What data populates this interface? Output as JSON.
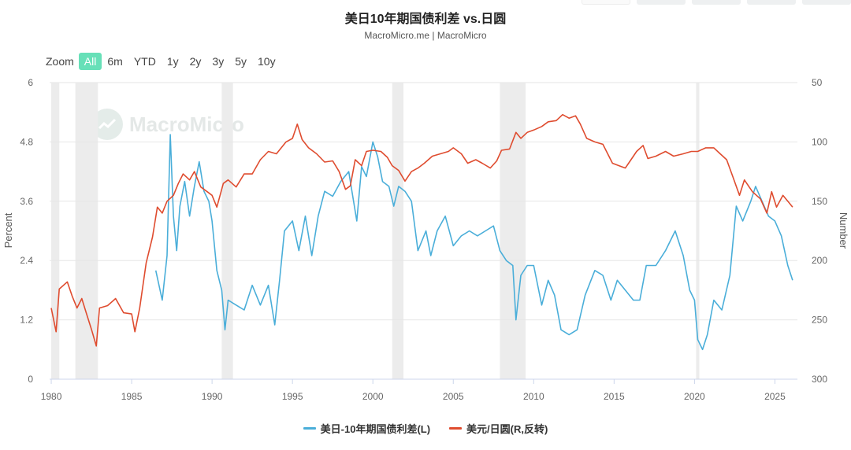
{
  "header": {
    "title": "美日10年期国债利差 vs.日圆",
    "subtitle": "MacroMicro.me | MacroMicro"
  },
  "watermark": {
    "text": "MacroMicro"
  },
  "zoom": {
    "label": "Zoom",
    "buttons": [
      "All",
      "6m",
      "YTD",
      "1y",
      "2y",
      "3y",
      "5y",
      "10y"
    ],
    "active": "All"
  },
  "colors": {
    "spread": "#4aaed9",
    "usdjpy": "#df4c2f",
    "recession": "#ececec",
    "grid": "#e6e6e6",
    "zoom_active": "#67e0b8"
  },
  "chart_data": {
    "type": "line",
    "title": "美日10年期国债利差 vs.日圆",
    "subtitle": "MacroMicro.me | MacroMicro",
    "x_ticks": [
      "1980",
      "1985",
      "1990",
      "1995",
      "2000",
      "2005",
      "2010",
      "2015",
      "2020",
      "2025"
    ],
    "xlim": [
      1979.9,
      2026.4
    ],
    "left_axis": {
      "label": "Percent",
      "ylim": [
        0,
        6
      ],
      "ticks": [
        "0",
        "1.2",
        "2.4",
        "3.6",
        "4.8",
        "6"
      ]
    },
    "right_axis": {
      "label": "Number",
      "ylim": [
        300,
        50
      ],
      "inverted": true,
      "ticks": [
        "300",
        "250",
        "200",
        "150",
        "100",
        "50"
      ]
    },
    "recession_bands": [
      [
        1980.0,
        1980.5
      ],
      [
        1981.5,
        1982.9
      ],
      [
        1990.6,
        1991.3
      ],
      [
        2001.2,
        2001.9
      ],
      [
        2007.9,
        2009.5
      ],
      [
        2020.1,
        2020.3
      ]
    ],
    "series": [
      {
        "name": "美日-10年期国债利差(L)",
        "axis": "left",
        "points": [
          [
            1986.5,
            2.2
          ],
          [
            1986.9,
            1.6
          ],
          [
            1987.2,
            2.5
          ],
          [
            1987.4,
            4.95
          ],
          [
            1987.6,
            3.3
          ],
          [
            1987.8,
            2.6
          ],
          [
            1988.0,
            3.5
          ],
          [
            1988.3,
            4.0
          ],
          [
            1988.6,
            3.3
          ],
          [
            1988.9,
            3.9
          ],
          [
            1989.2,
            4.4
          ],
          [
            1989.5,
            3.8
          ],
          [
            1989.8,
            3.6
          ],
          [
            1990.0,
            3.2
          ],
          [
            1990.3,
            2.2
          ],
          [
            1990.6,
            1.8
          ],
          [
            1990.8,
            1.0
          ],
          [
            1991.0,
            1.6
          ],
          [
            1991.5,
            1.5
          ],
          [
            1992.0,
            1.4
          ],
          [
            1992.5,
            1.9
          ],
          [
            1993.0,
            1.5
          ],
          [
            1993.5,
            1.9
          ],
          [
            1993.9,
            1.1
          ],
          [
            1994.2,
            2.0
          ],
          [
            1994.5,
            3.0
          ],
          [
            1995.0,
            3.2
          ],
          [
            1995.4,
            2.6
          ],
          [
            1995.8,
            3.3
          ],
          [
            1996.2,
            2.5
          ],
          [
            1996.6,
            3.3
          ],
          [
            1997.0,
            3.8
          ],
          [
            1997.5,
            3.7
          ],
          [
            1998.0,
            4.0
          ],
          [
            1998.5,
            4.2
          ],
          [
            1998.8,
            3.6
          ],
          [
            1999.0,
            3.2
          ],
          [
            1999.3,
            4.3
          ],
          [
            1999.6,
            4.1
          ],
          [
            2000.0,
            4.8
          ],
          [
            2000.3,
            4.5
          ],
          [
            2000.6,
            4.0
          ],
          [
            2001.0,
            3.9
          ],
          [
            2001.3,
            3.5
          ],
          [
            2001.6,
            3.9
          ],
          [
            2002.0,
            3.8
          ],
          [
            2002.4,
            3.6
          ],
          [
            2002.8,
            2.6
          ],
          [
            2003.3,
            3.0
          ],
          [
            2003.6,
            2.5
          ],
          [
            2004.0,
            3.0
          ],
          [
            2004.5,
            3.3
          ],
          [
            2005.0,
            2.7
          ],
          [
            2005.5,
            2.9
          ],
          [
            2006.0,
            3.0
          ],
          [
            2006.5,
            2.9
          ],
          [
            2007.0,
            3.0
          ],
          [
            2007.5,
            3.1
          ],
          [
            2007.9,
            2.6
          ],
          [
            2008.3,
            2.4
          ],
          [
            2008.7,
            2.3
          ],
          [
            2008.9,
            1.2
          ],
          [
            2009.2,
            2.1
          ],
          [
            2009.6,
            2.3
          ],
          [
            2010.0,
            2.3
          ],
          [
            2010.5,
            1.5
          ],
          [
            2010.9,
            2.0
          ],
          [
            2011.3,
            1.7
          ],
          [
            2011.7,
            1.0
          ],
          [
            2012.2,
            0.9
          ],
          [
            2012.7,
            1.0
          ],
          [
            2013.2,
            1.7
          ],
          [
            2013.8,
            2.2
          ],
          [
            2014.3,
            2.1
          ],
          [
            2014.8,
            1.6
          ],
          [
            2015.2,
            2.0
          ],
          [
            2015.7,
            1.8
          ],
          [
            2016.2,
            1.6
          ],
          [
            2016.6,
            1.6
          ],
          [
            2017.0,
            2.3
          ],
          [
            2017.6,
            2.3
          ],
          [
            2018.2,
            2.6
          ],
          [
            2018.8,
            3.0
          ],
          [
            2019.3,
            2.5
          ],
          [
            2019.7,
            1.8
          ],
          [
            2020.0,
            1.6
          ],
          [
            2020.2,
            0.8
          ],
          [
            2020.5,
            0.6
          ],
          [
            2020.8,
            0.9
          ],
          [
            2021.2,
            1.6
          ],
          [
            2021.7,
            1.4
          ],
          [
            2022.2,
            2.1
          ],
          [
            2022.6,
            3.5
          ],
          [
            2023.0,
            3.2
          ],
          [
            2023.5,
            3.6
          ],
          [
            2023.8,
            3.9
          ],
          [
            2024.2,
            3.6
          ],
          [
            2024.6,
            3.3
          ],
          [
            2025.0,
            3.2
          ],
          [
            2025.4,
            2.9
          ],
          [
            2025.8,
            2.3
          ],
          [
            2026.1,
            2.0
          ]
        ]
      },
      {
        "name": "美元/日圆(R,反转)",
        "axis": "right",
        "points": [
          [
            1980.0,
            240
          ],
          [
            1980.3,
            260
          ],
          [
            1980.5,
            224
          ],
          [
            1981.0,
            218
          ],
          [
            1981.3,
            230
          ],
          [
            1981.6,
            240
          ],
          [
            1981.9,
            232
          ],
          [
            1982.2,
            245
          ],
          [
            1982.5,
            258
          ],
          [
            1982.8,
            272
          ],
          [
            1983.0,
            240
          ],
          [
            1983.5,
            238
          ],
          [
            1984.0,
            232
          ],
          [
            1984.5,
            244
          ],
          [
            1985.0,
            245
          ],
          [
            1985.2,
            260
          ],
          [
            1985.5,
            240
          ],
          [
            1985.9,
            202
          ],
          [
            1986.3,
            180
          ],
          [
            1986.6,
            155
          ],
          [
            1986.9,
            160
          ],
          [
            1987.2,
            150
          ],
          [
            1987.6,
            145
          ],
          [
            1987.9,
            135
          ],
          [
            1988.2,
            127
          ],
          [
            1988.6,
            132
          ],
          [
            1988.9,
            125
          ],
          [
            1989.3,
            138
          ],
          [
            1989.8,
            143
          ],
          [
            1990.0,
            145
          ],
          [
            1990.3,
            155
          ],
          [
            1990.7,
            135
          ],
          [
            1991.0,
            132
          ],
          [
            1991.5,
            138
          ],
          [
            1992.0,
            127
          ],
          [
            1992.5,
            127
          ],
          [
            1993.0,
            115
          ],
          [
            1993.5,
            108
          ],
          [
            1994.0,
            110
          ],
          [
            1994.6,
            100
          ],
          [
            1995.0,
            97
          ],
          [
            1995.3,
            85
          ],
          [
            1995.6,
            98
          ],
          [
            1996.0,
            105
          ],
          [
            1996.5,
            110
          ],
          [
            1997.0,
            117
          ],
          [
            1997.5,
            116
          ],
          [
            1997.9,
            125
          ],
          [
            1998.3,
            140
          ],
          [
            1998.6,
            137
          ],
          [
            1998.9,
            115
          ],
          [
            1999.3,
            120
          ],
          [
            1999.6,
            108
          ],
          [
            2000.0,
            107
          ],
          [
            2000.5,
            108
          ],
          [
            2000.9,
            113
          ],
          [
            2001.2,
            120
          ],
          [
            2001.6,
            124
          ],
          [
            2002.0,
            133
          ],
          [
            2002.4,
            125
          ],
          [
            2002.8,
            122
          ],
          [
            2003.2,
            118
          ],
          [
            2003.7,
            112
          ],
          [
            2004.2,
            110
          ],
          [
            2004.7,
            108
          ],
          [
            2005.0,
            105
          ],
          [
            2005.5,
            110
          ],
          [
            2005.9,
            118
          ],
          [
            2006.4,
            115
          ],
          [
            2006.8,
            118
          ],
          [
            2007.3,
            122
          ],
          [
            2007.7,
            116
          ],
          [
            2008.0,
            107
          ],
          [
            2008.5,
            106
          ],
          [
            2008.9,
            92
          ],
          [
            2009.2,
            97
          ],
          [
            2009.6,
            92
          ],
          [
            2010.0,
            90
          ],
          [
            2010.5,
            87
          ],
          [
            2010.9,
            83
          ],
          [
            2011.4,
            82
          ],
          [
            2011.8,
            77
          ],
          [
            2012.2,
            80
          ],
          [
            2012.6,
            78
          ],
          [
            2012.9,
            85
          ],
          [
            2013.3,
            97
          ],
          [
            2013.8,
            100
          ],
          [
            2014.3,
            102
          ],
          [
            2014.9,
            118
          ],
          [
            2015.3,
            120
          ],
          [
            2015.7,
            122
          ],
          [
            2016.0,
            116
          ],
          [
            2016.4,
            108
          ],
          [
            2016.8,
            103
          ],
          [
            2017.1,
            114
          ],
          [
            2017.6,
            112
          ],
          [
            2018.2,
            108
          ],
          [
            2018.7,
            112
          ],
          [
            2019.3,
            110
          ],
          [
            2019.8,
            108
          ],
          [
            2020.2,
            108
          ],
          [
            2020.7,
            105
          ],
          [
            2021.2,
            105
          ],
          [
            2021.6,
            110
          ],
          [
            2022.0,
            115
          ],
          [
            2022.4,
            130
          ],
          [
            2022.8,
            145
          ],
          [
            2023.1,
            132
          ],
          [
            2023.6,
            142
          ],
          [
            2024.1,
            148
          ],
          [
            2024.5,
            160
          ],
          [
            2024.8,
            142
          ],
          [
            2025.1,
            155
          ],
          [
            2025.5,
            145
          ],
          [
            2025.8,
            150
          ],
          [
            2026.1,
            155
          ]
        ]
      }
    ],
    "legend": [
      "美日-10年期国债利差(L)",
      "美元/日圆(R,反转)"
    ]
  }
}
